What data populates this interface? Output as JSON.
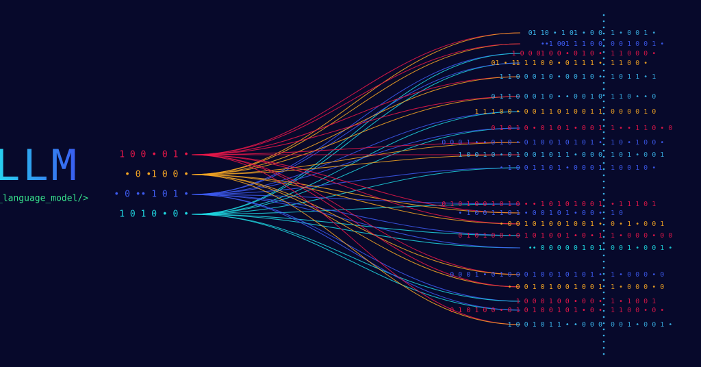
{
  "title": "LLM",
  "subtitle": "_language_model/>",
  "inputs": [
    {
      "text": "1 0 0  • 0 1 •",
      "color": "#e8174a"
    },
    {
      "text": "• 0 •1  0 0 •",
      "color": "#f5a623"
    },
    {
      "text": "• 0 •• 1 0 1 •",
      "color": "#3d5bf0"
    },
    {
      "text": "1  0 1 0 • 0 •",
      "color": "#1fd6e0"
    }
  ],
  "outputs": [
    {
      "left": "01 10 • 1 01 • 0  0",
      "right": "1 •  0   0  1 •",
      "color": "#3ab0e6"
    },
    {
      "left": "••1 001 1 1 0 0",
      "right": "0 0 1 0   0  1 •",
      "color": "#3d5bf0"
    },
    {
      "left": "1 0 0  01  0 0 • 0 1 0 •",
      "right": "1 1 0   0   0  •",
      "color": "#e8174a"
    },
    {
      "left": "01 • 11  1 1 0 0 • 0 1 1 1 •",
      "right": "1 1   0   0  •",
      "color": "#f5a623"
    },
    {
      "left": "1  1 0 0 0 1 0 • 0 0 1 0 •",
      "right": "1  0 1   1  • 1",
      "color": "#3ab0e6"
    },
    {
      "left": "0 1 1 0 0 0 1 0 • • 0 0 1 0",
      "right": "1 1 0 •  •  0",
      "color": "#3ab0e6"
    },
    {
      "left": "1 1 1 0 0 • 0 0 1 1 0 1 0 0 1 1",
      "right": "0   0 0 0   1   0",
      "color": "#f5a623"
    },
    {
      "left": "0 1 0 1 0 • 0  1 0 1 • 0 0 1",
      "right": "1 • • 1 1 0 •  0",
      "color": "#e8174a"
    },
    {
      "left": "0 0 0 1 • • 0 1 0 • 0 1 0 0  1 0 1 0 1 •",
      "right": "1   0 • 1 0   0 •",
      "color": "#3d5bf0"
    },
    {
      "left": "1 0 0  1 0 • 0 1 0 0 1  0 1 1 • 0 0 0",
      "right": "1   0   1  • 0 0 1",
      "color": "#3ab0e6"
    },
    {
      "left": "• 1 0 0 1 1 0  1 • 0 0 0 1",
      "right": "1   0   0  1  0   •",
      "color": "#3d5bf0"
    },
    {
      "left": "0 1 0 1 0 0  1 0  1 0 • • 1 0  1 0 1 0 0 1",
      "right": "• 1  1   1   0  1",
      "color": "#e8174a"
    },
    {
      "left": "• 1 0 0 1 1 0  1 • 0 0  1  0 1 • 0 0 •",
      "right": "1 0",
      "color": "#3d5bf0"
    },
    {
      "left": "• 0 0  1 0 1 0 0 1 0  0 1 •",
      "right": "0 •  1  • 0   0  1",
      "color": "#f5a623"
    },
    {
      "left": "0 1 0 1 0 0 • 0 1 0 1 0 0 1  • 0 • 1",
      "right": "1 • 0 0   0 • 0  0",
      "color": "#e8174a"
    },
    {
      "left": "•• 0 0 0  0 0 1 0 1",
      "right": "0   0   1   • 0 0 1 •",
      "color": "#1fd6e0"
    },
    {
      "left": "0 0 0 1 • 0 1 0 0 0 1 0 0  1 0 1 0 1 •",
      "right": "1 • 0 0   0   •  0",
      "color": "#3d5bf0"
    },
    {
      "left": "• 0 0  1 0 1 0 0 1 0 0 1",
      "right": "1 • 0 0   0 •  0",
      "color": "#f5a623"
    },
    {
      "left": "1 0 0 0 1   0 0 • 0   0 •",
      "right": "1   • 1 0   0   1",
      "color": "#e8174a"
    },
    {
      "left": "0 1 0 1 0 0 • 0 1 0 1 0 0 1  0 1  • 0 •",
      "right": "1 1 0 0   •  0  •",
      "color": "#e8174a"
    },
    {
      "left": "1 0 0 1  0 1 1 • • 0 0 0",
      "right": "0   0   1  • 0 0 1 •",
      "color": "#3ab0e6"
    }
  ]
}
